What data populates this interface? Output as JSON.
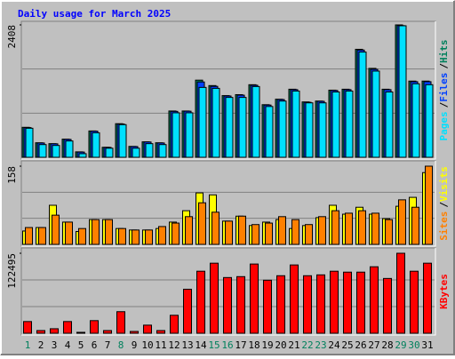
{
  "chart_data": [
    {
      "type": "bar",
      "title": "Daily usage for March 2025",
      "categories": [
        "1",
        "2",
        "3",
        "4",
        "5",
        "6",
        "7",
        "8",
        "9",
        "10",
        "11",
        "12",
        "13",
        "14",
        "15",
        "16",
        "17",
        "18",
        "19",
        "20",
        "21",
        "22",
        "23",
        "24",
        "25",
        "26",
        "27",
        "28",
        "29",
        "30",
        "31"
      ],
      "highlighted": [
        true,
        false,
        false,
        false,
        false,
        false,
        false,
        true,
        false,
        false,
        false,
        false,
        false,
        false,
        true,
        true,
        false,
        false,
        false,
        false,
        false,
        true,
        true,
        false,
        false,
        false,
        false,
        false,
        true,
        true,
        false
      ],
      "separator": "/",
      "ylim": [
        0,
        2408
      ],
      "yticks": [
        2408
      ],
      "series": [
        {
          "name": "Hits",
          "color": "#00805c",
          "values": [
            545,
            264,
            248,
            330,
            99,
            479,
            182,
            611,
            198,
            281,
            264,
            842,
            842,
            1403,
            1304,
            1122,
            1139,
            1320,
            957,
            1056,
            1238,
            1007,
            1023,
            1221,
            1238,
            1964,
            1617,
            1238,
            2408,
            1386,
            1386
          ]
        },
        {
          "name": "Files",
          "color": "#0040ff",
          "values": [
            540,
            260,
            245,
            325,
            95,
            475,
            180,
            605,
            195,
            278,
            260,
            835,
            838,
            1370,
            1290,
            1115,
            1130,
            1310,
            950,
            1050,
            1230,
            1000,
            1018,
            1215,
            1230,
            1950,
            1600,
            1230,
            2395,
            1375,
            1375
          ]
        },
        {
          "name": "Pages",
          "color": "#00e0ff",
          "values": [
            528,
            231,
            215,
            297,
            66,
            446,
            165,
            594,
            165,
            248,
            231,
            809,
            809,
            1271,
            1254,
            1089,
            1089,
            1287,
            924,
            1023,
            1205,
            990,
            990,
            1188,
            1205,
            1914,
            1568,
            1188,
            2392,
            1337,
            1320
          ]
        }
      ]
    },
    {
      "type": "bar",
      "ylim": [
        0,
        158
      ],
      "yticks": [
        158
      ],
      "series": [
        {
          "name": "Visits",
          "color": "#ffff00",
          "values": [
            27,
            34,
            79,
            45,
            26,
            50,
            50,
            32,
            29,
            29,
            32,
            45,
            68,
            104,
            100,
            47,
            57,
            38,
            45,
            50,
            32,
            38,
            54,
            79,
            61,
            75,
            61,
            52,
            77,
            95,
            145
          ]
        },
        {
          "name": "Sites",
          "color": "#ff8000",
          "values": [
            34,
            34,
            59,
            45,
            32,
            50,
            50,
            32,
            29,
            29,
            36,
            43,
            56,
            84,
            65,
            47,
            57,
            40,
            43,
            56,
            50,
            40,
            56,
            68,
            63,
            68,
            63,
            50,
            90,
            75,
            158
          ]
        }
      ]
    },
    {
      "type": "bar",
      "ylim": [
        0,
        122495
      ],
      "yticks": [
        122495
      ],
      "series": [
        {
          "name": "KBytes",
          "color": "#ff0000",
          "values": [
            17900,
            4100,
            6900,
            17900,
            1400,
            19300,
            4100,
            33000,
            2750,
            12400,
            4100,
            27500,
            67400,
            95000,
            107300,
            85300,
            86700,
            106000,
            81200,
            88100,
            104600,
            88100,
            89400,
            95000,
            93600,
            93600,
            101800,
            83900,
            122495,
            95000,
            107300
          ]
        }
      ]
    }
  ]
}
